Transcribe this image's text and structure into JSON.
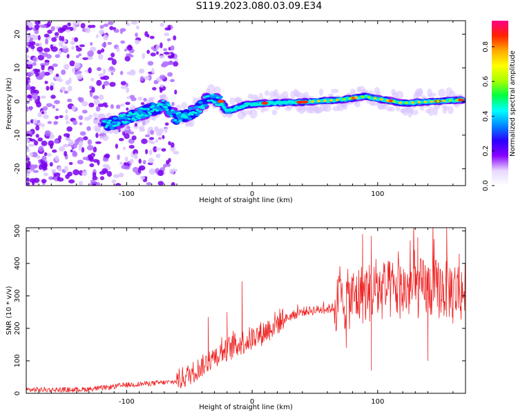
{
  "page_title": "S119.2023.080.03.09.E34",
  "chart_data": [
    {
      "type": "heatmap",
      "xlabel": "Height of straight line (km)",
      "ylabel": "Frequency (Hz)",
      "xlim": [
        -180,
        170
      ],
      "ylim": [
        -25,
        24
      ],
      "x_ticks": [
        -100,
        0,
        100
      ],
      "y_ticks": [
        -20,
        -10,
        0,
        10,
        20
      ],
      "colorbar": {
        "label": "Normalized spectral amplitude",
        "range": [
          0,
          0.95
        ],
        "ticks": [
          0.0,
          0.2,
          0.4,
          0.6,
          0.8
        ],
        "colors": [
          "#ffffff",
          "#e8d8ff",
          "#8800ff",
          "#2a00ff",
          "#0088ff",
          "#00ffff",
          "#00ff44",
          "#aaff00",
          "#ffff00",
          "#ffaa00",
          "#ff2200",
          "#ff0088"
        ]
      },
      "ridge": [
        {
          "x": -115,
          "y": -7
        },
        {
          "x": -100,
          "y": -5
        },
        {
          "x": -85,
          "y": -3
        },
        {
          "x": -70,
          "y": -1
        },
        {
          "x": -60,
          "y": -5
        },
        {
          "x": -45,
          "y": -3
        },
        {
          "x": -35,
          "y": 1
        },
        {
          "x": -25,
          "y": 0
        },
        {
          "x": -20,
          "y": -3
        },
        {
          "x": -5,
          "y": -1
        },
        {
          "x": 10,
          "y": -0.5
        },
        {
          "x": 40,
          "y": -0.2
        },
        {
          "x": 70,
          "y": 0.5
        },
        {
          "x": 90,
          "y": 1.5
        },
        {
          "x": 120,
          "y": -0.5
        },
        {
          "x": 145,
          "y": 0
        },
        {
          "x": 168,
          "y": 0.5
        }
      ]
    },
    {
      "type": "line",
      "xlabel": "Height of straight line (km)",
      "ylabel": "SNR (10 * v/v)",
      "xlim": [
        -180,
        170
      ],
      "ylim": [
        0,
        510
      ],
      "x_ticks": [
        -100,
        0,
        100
      ],
      "y_ticks": [
        0,
        100,
        200,
        300,
        400,
        500
      ],
      "series": [
        {
          "color": "#ee2222",
          "envelope": [
            {
              "x": -180,
              "y": 10
            },
            {
              "x": -140,
              "y": 10
            },
            {
              "x": -120,
              "y": 15
            },
            {
              "x": -100,
              "y": 25
            },
            {
              "x": -80,
              "y": 30
            },
            {
              "x": -60,
              "y": 35
            },
            {
              "x": -50,
              "y": 55
            },
            {
              "x": -40,
              "y": 80
            },
            {
              "x": -30,
              "y": 110
            },
            {
              "x": -20,
              "y": 130
            },
            {
              "x": -10,
              "y": 150
            },
            {
              "x": 0,
              "y": 165
            },
            {
              "x": 10,
              "y": 185
            },
            {
              "x": 20,
              "y": 215
            },
            {
              "x": 30,
              "y": 235
            },
            {
              "x": 40,
              "y": 250
            },
            {
              "x": 50,
              "y": 255
            },
            {
              "x": 60,
              "y": 258
            },
            {
              "x": 70,
              "y": 268
            },
            {
              "x": 80,
              "y": 285
            },
            {
              "x": 90,
              "y": 300
            },
            {
              "x": 100,
              "y": 305
            },
            {
              "x": 120,
              "y": 310
            },
            {
              "x": 140,
              "y": 315
            },
            {
              "x": 160,
              "y": 310
            },
            {
              "x": 170,
              "y": 300
            }
          ],
          "spikes": [
            {
              "x": -35,
              "y": 235
            },
            {
              "x": -20,
              "y": 250
            },
            {
              "x": -8,
              "y": 345
            },
            {
              "x": 88,
              "y": 490
            },
            {
              "x": 95,
              "y": 485
            },
            {
              "x": 132,
              "y": 480
            },
            {
              "x": 145,
              "y": 475
            },
            {
              "x": 155,
              "y": 510
            },
            {
              "x": 165,
              "y": 430
            }
          ],
          "dips": [
            {
              "x": 75,
              "y": 140
            },
            {
              "x": 95,
              "y": 70
            },
            {
              "x": 140,
              "y": 100
            },
            {
              "x": 160,
              "y": 215
            }
          ]
        }
      ]
    }
  ]
}
